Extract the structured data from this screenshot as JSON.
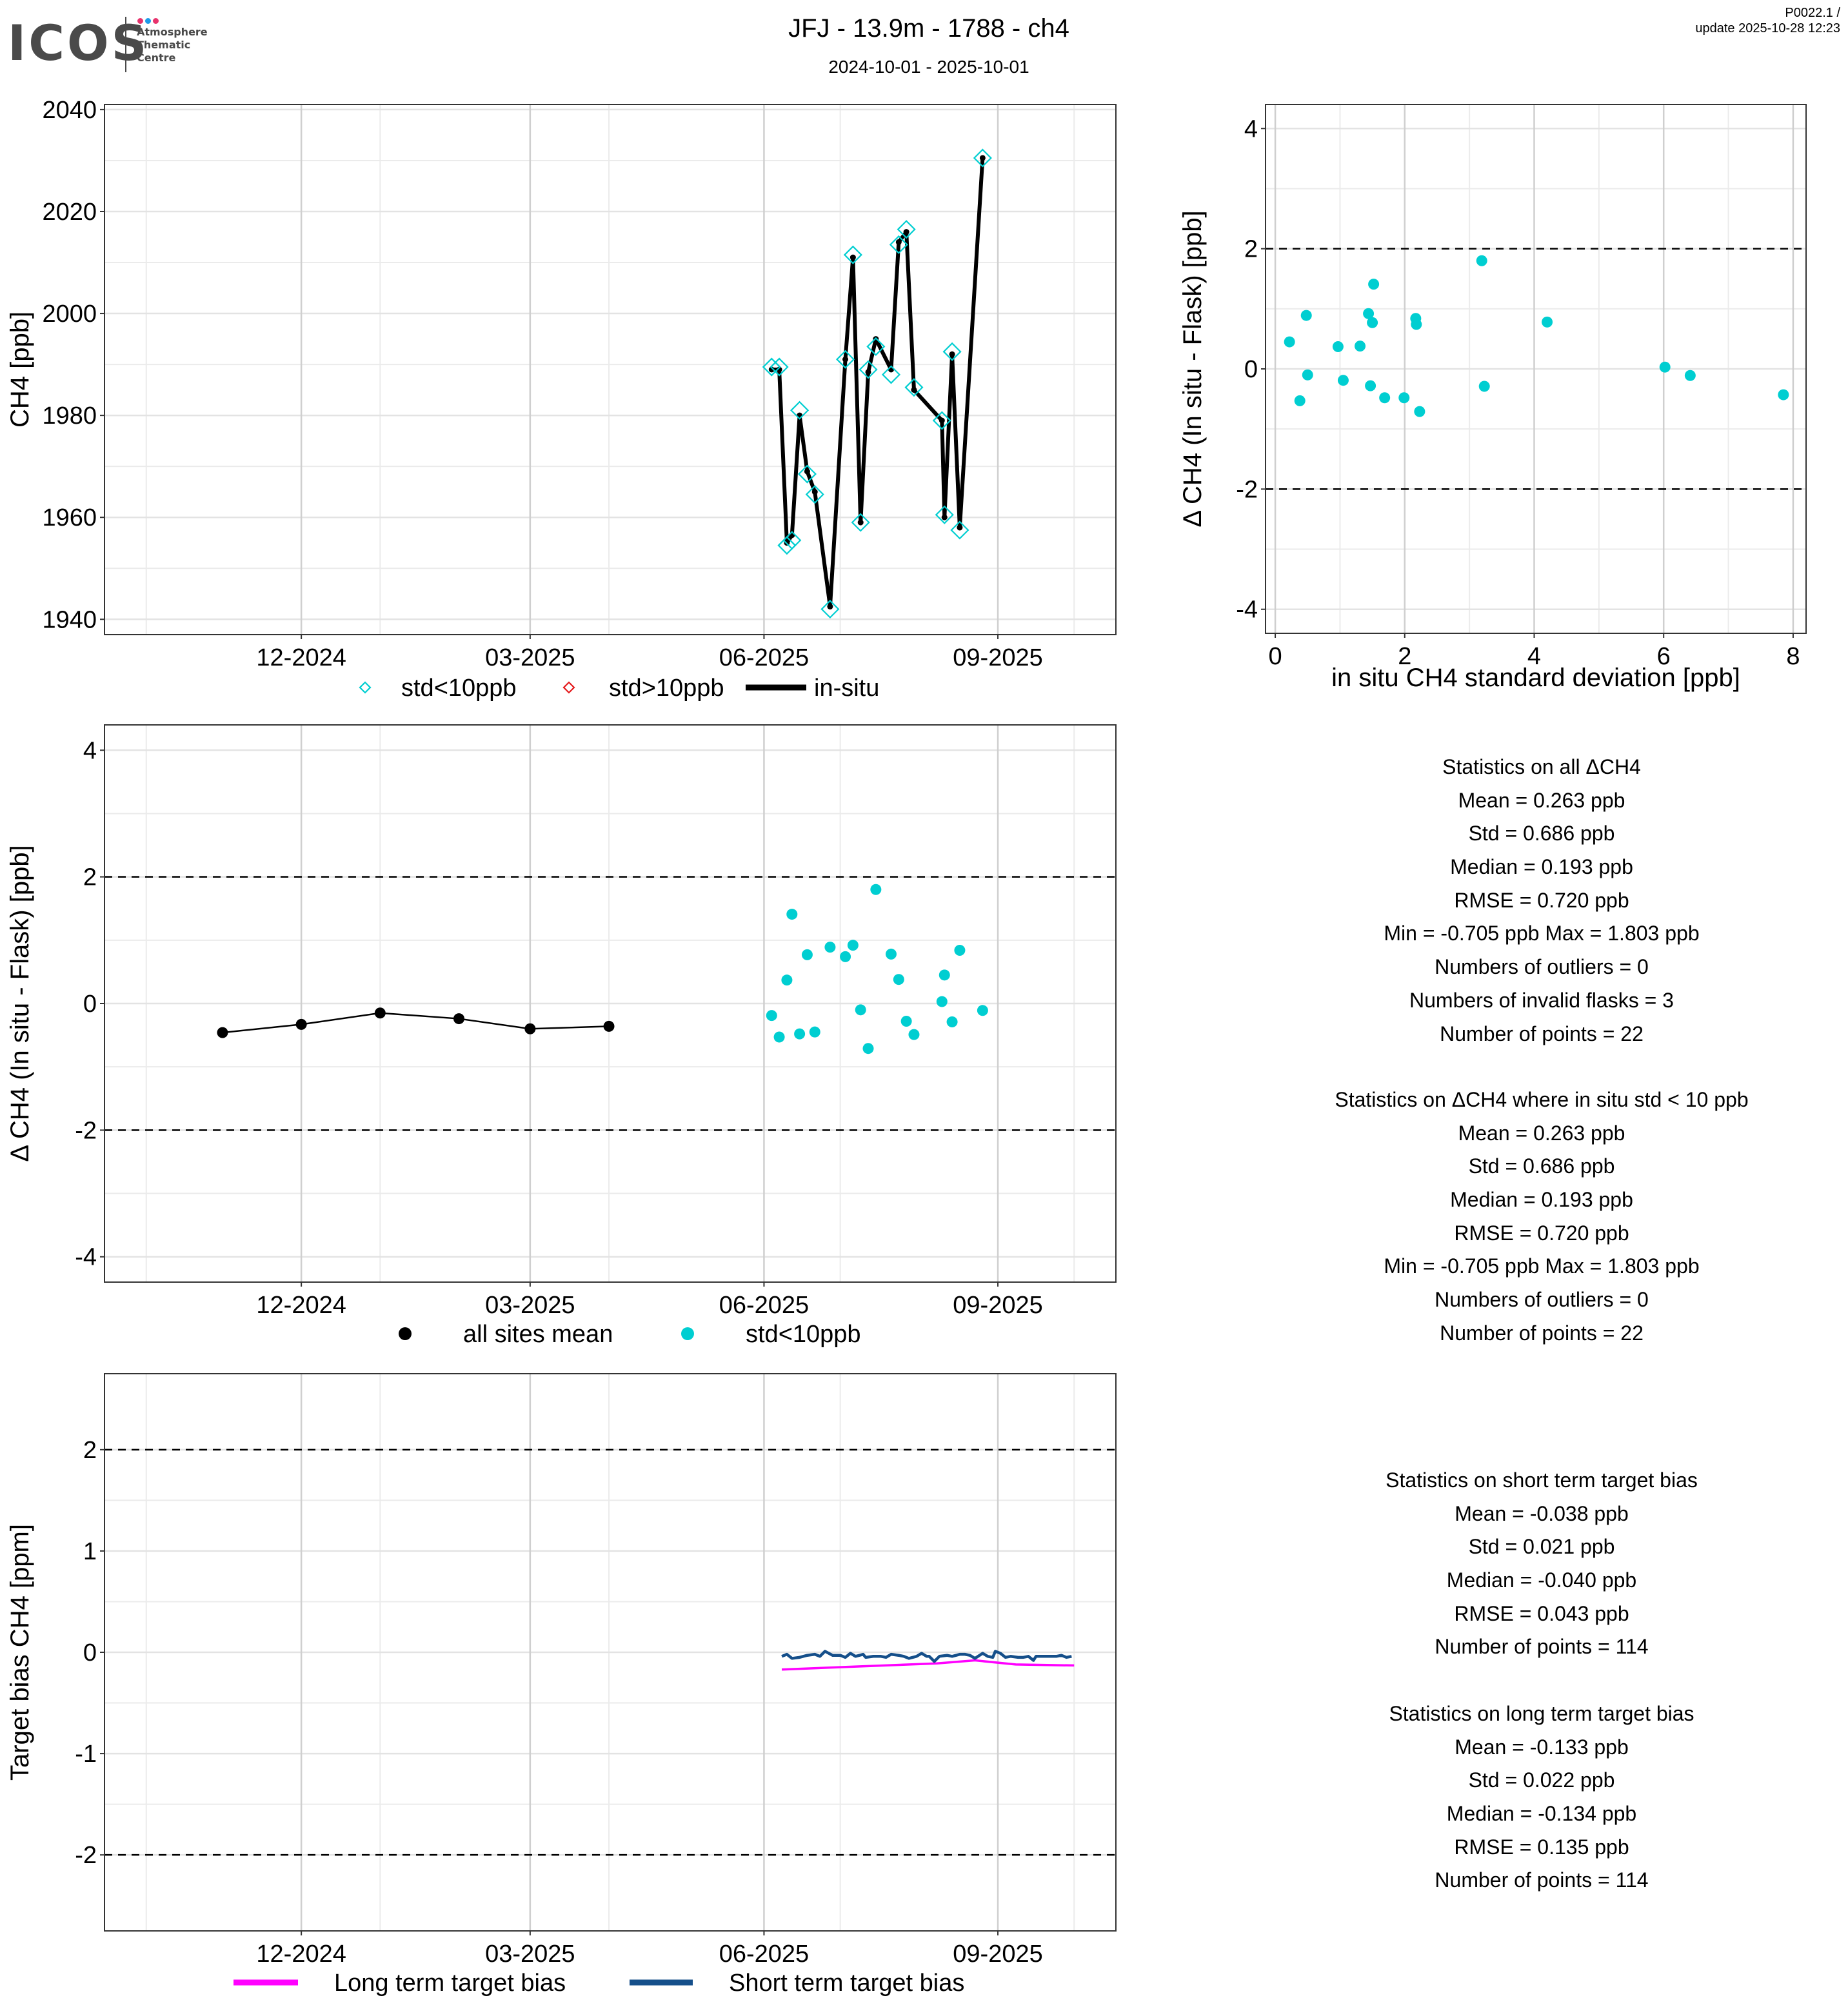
{
  "header": {
    "logo_text": "ICOS",
    "logo_subtitle": [
      "Atmosphere",
      "Thematic",
      "Centre"
    ],
    "logo_dot_colors": [
      "#e8336d",
      "#1e9be9",
      "#e8336d"
    ],
    "title": "JFJ - 13.9m - 1788 - ch4",
    "subtitle": "2024-10-01 - 2025-10-01",
    "version": "P0022.1 /",
    "update": "update  2025-10-28 12:23"
  },
  "colors": {
    "cyan": "#00CED1",
    "red": "#e41a1c",
    "magenta": "#ff00ff",
    "navy": "#154f8a",
    "black": "#000000"
  },
  "chart_data": [
    {
      "id": "ch4-timeseries",
      "type": "line",
      "ylabel": "CH4 [ppb]",
      "xlabel": "",
      "x_range": [
        "2024-10-01",
        "2025-10-01"
      ],
      "ylim": [
        1937,
        2041
      ],
      "yticks": [
        1940,
        1960,
        1980,
        2000,
        2020,
        2040
      ],
      "xticks": [
        {
          "date": "2024-12-01",
          "label": "12-2024"
        },
        {
          "date": "2025-03-01",
          "label": "03-2025"
        },
        {
          "date": "2025-06-01",
          "label": "06-2025"
        },
        {
          "date": "2025-09-01",
          "label": "09-2025"
        }
      ],
      "grid": true,
      "legend": {
        "position": "bottom",
        "items": [
          {
            "label": "std<10ppb",
            "type": "diamond",
            "color": "#00CED1"
          },
          {
            "label": "std>10ppb",
            "type": "diamond",
            "color": "#e41a1c"
          },
          {
            "label": "in-situ",
            "type": "line",
            "color": "#000000"
          }
        ]
      },
      "series": [
        {
          "name": "in-situ",
          "points": [
            [
              "2025-06-04",
              1989.0
            ],
            [
              "2025-06-07",
              1989.0
            ],
            [
              "2025-06-10",
              1955.0
            ],
            [
              "2025-06-12",
              1956.5
            ],
            [
              "2025-06-15",
              1980.0
            ],
            [
              "2025-06-18",
              1969.0
            ],
            [
              "2025-06-21",
              1965.0
            ],
            [
              "2025-06-27",
              1942.5
            ],
            [
              "2025-07-03",
              1991.0
            ],
            [
              "2025-07-06",
              2011.0
            ],
            [
              "2025-07-09",
              1959.0
            ],
            [
              "2025-07-12",
              1988.5
            ],
            [
              "2025-07-15",
              1995.0
            ],
            [
              "2025-07-21",
              1989.0
            ],
            [
              "2025-07-24",
              2014.0
            ],
            [
              "2025-07-27",
              2016.0
            ],
            [
              "2025-07-30",
              1985.0
            ],
            [
              "2025-08-10",
              1979.0
            ],
            [
              "2025-08-11",
              1960.0
            ],
            [
              "2025-08-14",
              1992.0
            ],
            [
              "2025-08-17",
              1958.0
            ],
            [
              "2025-08-26",
              2030.5
            ]
          ]
        },
        {
          "name": "std<10ppb",
          "points": [
            [
              "2025-06-04",
              1989.5
            ],
            [
              "2025-06-07",
              1989.5
            ],
            [
              "2025-06-10",
              1954.5
            ],
            [
              "2025-06-12",
              1955.5
            ],
            [
              "2025-06-15",
              1981.0
            ],
            [
              "2025-06-18",
              1968.5
            ],
            [
              "2025-06-21",
              1964.5
            ],
            [
              "2025-06-27",
              1942.0
            ],
            [
              "2025-07-03",
              1991.0
            ],
            [
              "2025-07-06",
              2011.5
            ],
            [
              "2025-07-09",
              1959.0
            ],
            [
              "2025-07-12",
              1989.0
            ],
            [
              "2025-07-15",
              1993.5
            ],
            [
              "2025-07-21",
              1988.0
            ],
            [
              "2025-07-24",
              2013.5
            ],
            [
              "2025-07-27",
              2016.5
            ],
            [
              "2025-07-30",
              1985.5
            ],
            [
              "2025-08-10",
              1979.0
            ],
            [
              "2025-08-11",
              1960.5
            ],
            [
              "2025-08-14",
              1992.5
            ],
            [
              "2025-08-17",
              1957.5
            ],
            [
              "2025-08-26",
              2030.5
            ]
          ]
        }
      ]
    },
    {
      "id": "delta-vs-std",
      "type": "scatter",
      "xlabel": "in situ CH4 standard deviation [ppb]",
      "ylabel": "Δ CH4 (In situ - Flask) [ppb]",
      "xlim": [
        -0.15,
        8.2
      ],
      "ylim": [
        -4.4,
        4.4
      ],
      "xticks": [
        0,
        2,
        4,
        6,
        8
      ],
      "yticks": [
        -4,
        -2,
        0,
        2,
        4
      ],
      "hlines": [
        2,
        -2
      ],
      "grid": true,
      "series": [
        {
          "name": "std<10ppb",
          "x": [
            0.22,
            0.38,
            0.48,
            0.5,
            0.97,
            1.05,
            1.31,
            1.44,
            1.47,
            1.5,
            1.52,
            1.69,
            1.99,
            2.17,
            2.18,
            2.23,
            3.19,
            3.23,
            4.2,
            6.02,
            6.41,
            7.85
          ],
          "y": [
            0.45,
            -0.53,
            0.89,
            -0.1,
            0.37,
            -0.19,
            0.38,
            0.92,
            -0.28,
            0.77,
            1.41,
            -0.48,
            -0.48,
            0.84,
            0.74,
            -0.71,
            1.8,
            -0.29,
            0.78,
            0.03,
            -0.11,
            -0.43
          ]
        }
      ]
    },
    {
      "id": "delta-timeseries",
      "type": "scatter",
      "xlabel": "",
      "ylabel": "Δ CH4 (In situ - Flask) [ppb]",
      "x_range": [
        "2024-10-01",
        "2025-10-01"
      ],
      "ylim": [
        -4.4,
        4.4
      ],
      "yticks": [
        -4,
        -2,
        0,
        2,
        4
      ],
      "hlines": [
        2,
        -2
      ],
      "xticks": [
        {
          "date": "2024-12-01",
          "label": "12-2024"
        },
        {
          "date": "2025-03-01",
          "label": "03-2025"
        },
        {
          "date": "2025-06-01",
          "label": "06-2025"
        },
        {
          "date": "2025-09-01",
          "label": "09-2025"
        }
      ],
      "grid": true,
      "legend": {
        "position": "bottom",
        "items": [
          {
            "label": "all sites mean",
            "type": "dot",
            "color": "#000000"
          },
          {
            "label": "std<10ppb",
            "type": "dot",
            "color": "#00CED1"
          }
        ]
      },
      "series": [
        {
          "name": "all sites mean",
          "type": "line",
          "points": [
            [
              "2024-10-31",
              -0.46
            ],
            [
              "2024-12-01",
              -0.33
            ],
            [
              "2025-01-01",
              -0.15
            ],
            [
              "2025-02-01",
              -0.24
            ],
            [
              "2025-03-01",
              -0.4
            ],
            [
              "2025-04-01",
              -0.36
            ]
          ]
        },
        {
          "name": "std<10ppb",
          "type": "scatter",
          "points": [
            [
              "2025-06-04",
              -0.19
            ],
            [
              "2025-06-07",
              -0.53
            ],
            [
              "2025-06-10",
              0.37
            ],
            [
              "2025-06-12",
              1.41
            ],
            [
              "2025-06-15",
              -0.48
            ],
            [
              "2025-06-18",
              0.77
            ],
            [
              "2025-06-21",
              -0.45
            ],
            [
              "2025-06-27",
              0.89
            ],
            [
              "2025-07-03",
              0.74
            ],
            [
              "2025-07-06",
              0.92
            ],
            [
              "2025-07-09",
              -0.1
            ],
            [
              "2025-07-12",
              -0.71
            ],
            [
              "2025-07-15",
              1.8
            ],
            [
              "2025-07-21",
              0.78
            ],
            [
              "2025-07-24",
              0.38
            ],
            [
              "2025-07-27",
              -0.28
            ],
            [
              "2025-07-30",
              -0.49
            ],
            [
              "2025-08-10",
              0.03
            ],
            [
              "2025-08-11",
              0.45
            ],
            [
              "2025-08-14",
              -0.29
            ],
            [
              "2025-08-17",
              0.84
            ],
            [
              "2025-08-26",
              -0.11
            ]
          ]
        }
      ]
    },
    {
      "id": "target-bias",
      "type": "line",
      "xlabel": "",
      "ylabel": "Target bias CH4 [ppm]",
      "x_range": [
        "2024-10-01",
        "2025-10-01"
      ],
      "ylim": [
        -2.75,
        2.75
      ],
      "yticks": [
        -2,
        -1,
        0,
        1,
        2
      ],
      "hlines": [
        2,
        -2
      ],
      "xticks": [
        {
          "date": "2024-12-01",
          "label": "12-2024"
        },
        {
          "date": "2025-03-01",
          "label": "03-2025"
        },
        {
          "date": "2025-06-01",
          "label": "06-2025"
        },
        {
          "date": "2025-09-01",
          "label": "09-2025"
        }
      ],
      "grid": true,
      "legend": {
        "position": "bottom",
        "items": [
          {
            "label": "Long term target bias",
            "type": "line",
            "color": "#ff00ff"
          },
          {
            "label": "Short term target bias",
            "type": "line",
            "color": "#154f8a"
          }
        ]
      },
      "series": [
        {
          "name": "Long term target bias",
          "points": [
            [
              "2025-06-08",
              -0.17
            ],
            [
              "2025-07-08",
              -0.14
            ],
            [
              "2025-08-08",
              -0.11
            ],
            [
              "2025-08-23",
              -0.08
            ],
            [
              "2025-09-08",
              -0.12
            ],
            [
              "2025-10-01",
              -0.13
            ]
          ]
        },
        {
          "name": "Short term target bias",
          "points": [
            [
              "2025-06-08",
              -0.04
            ],
            [
              "2025-06-10",
              -0.02
            ],
            [
              "2025-06-12",
              -0.06
            ],
            [
              "2025-06-15",
              -0.05
            ],
            [
              "2025-06-18",
              -0.03
            ],
            [
              "2025-06-21",
              -0.02
            ],
            [
              "2025-06-23",
              -0.04
            ],
            [
              "2025-06-25",
              0.01
            ],
            [
              "2025-06-28",
              -0.03
            ],
            [
              "2025-07-01",
              -0.03
            ],
            [
              "2025-07-03",
              -0.05
            ],
            [
              "2025-07-05",
              -0.01
            ],
            [
              "2025-07-07",
              -0.04
            ],
            [
              "2025-07-10",
              -0.02
            ],
            [
              "2025-07-11",
              -0.05
            ],
            [
              "2025-07-14",
              -0.04
            ],
            [
              "2025-07-17",
              -0.04
            ],
            [
              "2025-07-19",
              -0.05
            ],
            [
              "2025-07-21",
              -0.02
            ],
            [
              "2025-07-24",
              -0.03
            ],
            [
              "2025-07-26",
              -0.04
            ],
            [
              "2025-07-28",
              -0.06
            ],
            [
              "2025-07-31",
              -0.04
            ],
            [
              "2025-08-02",
              -0.01
            ],
            [
              "2025-08-04",
              -0.04
            ],
            [
              "2025-08-05",
              -0.04
            ],
            [
              "2025-08-07",
              -0.09
            ],
            [
              "2025-08-09",
              -0.04
            ],
            [
              "2025-08-12",
              -0.03
            ],
            [
              "2025-08-14",
              -0.04
            ],
            [
              "2025-08-17",
              -0.02
            ],
            [
              "2025-08-19",
              -0.02
            ],
            [
              "2025-08-21",
              -0.03
            ],
            [
              "2025-08-23",
              -0.06
            ],
            [
              "2025-08-26",
              -0.01
            ],
            [
              "2025-08-28",
              -0.04
            ],
            [
              "2025-08-30",
              -0.05
            ],
            [
              "2025-08-31",
              0.01
            ],
            [
              "2025-09-02",
              -0.01
            ],
            [
              "2025-09-04",
              -0.05
            ],
            [
              "2025-09-06",
              -0.04
            ],
            [
              "2025-09-09",
              -0.05
            ],
            [
              "2025-09-11",
              -0.05
            ],
            [
              "2025-09-13",
              -0.04
            ],
            [
              "2025-09-15",
              -0.08
            ],
            [
              "2025-09-16",
              -0.04
            ],
            [
              "2025-09-19",
              -0.04
            ],
            [
              "2025-09-21",
              -0.04
            ],
            [
              "2025-09-24",
              -0.04
            ],
            [
              "2025-09-26",
              -0.03
            ],
            [
              "2025-09-28",
              -0.05
            ],
            [
              "2025-09-30",
              -0.04
            ]
          ]
        }
      ]
    }
  ],
  "stats_all": {
    "title": "Statistics on all ΔCH4",
    "lines": [
      "Mean =  0.263 ppb",
      "Std =  0.686 ppb",
      "Median =  0.193 ppb",
      "RMSE =  0.720 ppb",
      "Min =  -0.705 ppb Max =  1.803 ppb",
      "Numbers of outliers =  0",
      "Numbers of invalid flasks =  3",
      "Number of points =  22"
    ]
  },
  "stats_std": {
    "title": "Statistics on ΔCH4 where in situ std < 10 ppb",
    "lines": [
      "Mean =  0.263 ppb",
      "Std =  0.686 ppb",
      "Median =  0.193 ppb",
      "RMSE =  0.720 ppb",
      "Min =  -0.705 ppb Max =  1.803 ppb",
      "Numbers of outliers =  0",
      "Number of points =  22"
    ]
  },
  "stats_short": {
    "title": "Statistics on short term target bias",
    "lines": [
      "Mean =  -0.038 ppb",
      "Std =  0.021 ppb",
      "Median =  -0.040 ppb",
      "RMSE =  0.043 ppb",
      "Number of points =  114"
    ]
  },
  "stats_long": {
    "title": "Statistics on long term target bias",
    "lines": [
      "Mean =  -0.133 ppb",
      "Std =  0.022 ppb",
      "Median =  -0.134 ppb",
      "RMSE =  0.135 ppb",
      "Number of points =  114"
    ]
  }
}
